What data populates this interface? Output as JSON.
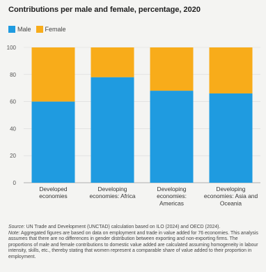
{
  "title": "Contributions per male and female, percentage, 2020",
  "legend": [
    {
      "label": "Male",
      "color": "#1f9be0"
    },
    {
      "label": "Female",
      "color": "#f8ac1a"
    }
  ],
  "chart_data": {
    "type": "bar",
    "stacked": true,
    "title": "Contributions per male and female, percentage, 2020",
    "categories": [
      [
        "Developed",
        "economies"
      ],
      [
        "Developing",
        "economies: Africa"
      ],
      [
        "Developing",
        "economies:",
        "Americas"
      ],
      [
        "Developing",
        "economies: Asia and",
        "Oceania"
      ]
    ],
    "series": [
      {
        "name": "Male",
        "values": [
          60,
          78,
          68,
          66
        ],
        "color": "#1f9be0"
      },
      {
        "name": "Female",
        "values": [
          40,
          22,
          32,
          34
        ],
        "color": "#f8ac1a"
      }
    ],
    "ylim": [
      0,
      100
    ],
    "yticks": [
      0,
      20,
      40,
      60,
      80,
      100
    ],
    "grid": true,
    "legend_position": "top-left"
  },
  "source": {
    "label": "Source:",
    "text": "UN Trade and Development (UNCTAD) calculation based on ILO (2024) and OECD (2024)."
  },
  "note": {
    "label": "Note:",
    "text": "Aggregated figures are based on data on employment and trade in value added for 76 economies. This analysis assumes that there are no differences in gender distribution between exporting and non-exporting firms. The proportions of male and female contributions to domestic value added are calculated assuming homogeneity in labour intensity, skills, etc., thereby stating that women represent a comparable share of value added to their proportion in employment."
  }
}
